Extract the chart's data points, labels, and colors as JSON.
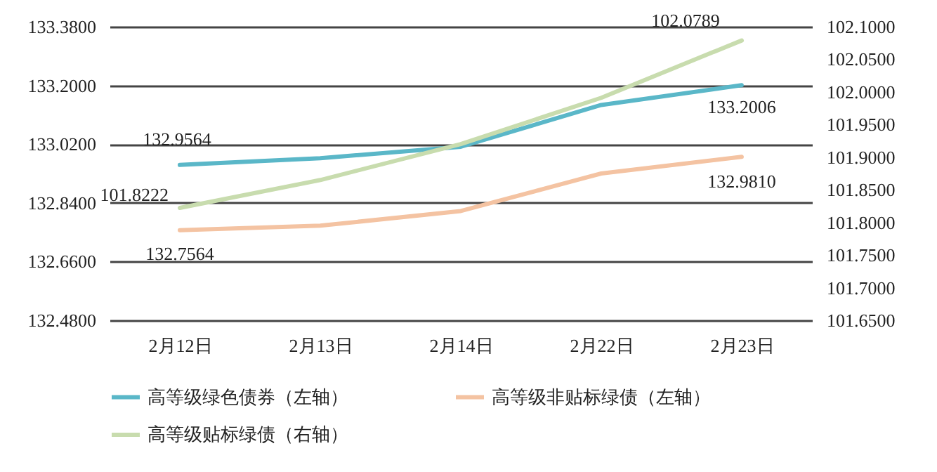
{
  "chart_data": {
    "type": "line",
    "categories": [
      "2月12日",
      "2月13日",
      "2月14日",
      "2月22日",
      "2月23日"
    ],
    "series": [
      {
        "name": "高等级绿色债券（左轴）",
        "color": "#5ab7c8",
        "axis": "y",
        "values": [
          132.9564,
          132.977,
          133.012,
          133.14,
          133.2006
        ],
        "value_labels": [
          "132.9564",
          null,
          null,
          null,
          "133.2006"
        ]
      },
      {
        "name": "高等级非贴标绿债（左轴）",
        "color": "#f4c3a2",
        "axis": "y",
        "values": [
          132.7564,
          132.77,
          132.815,
          132.93,
          132.981
        ],
        "value_labels": [
          "132.7564",
          null,
          null,
          null,
          "132.9810"
        ]
      },
      {
        "name": "高等级贴标绿债（右轴）",
        "color": "#c8dcae",
        "axis": "y2",
        "values": [
          101.8222,
          101.865,
          101.92,
          101.991,
          102.0789
        ],
        "value_labels": [
          "101.8222",
          null,
          null,
          null,
          "102.0789"
        ]
      }
    ],
    "ylim": [
      132.48,
      133.38
    ],
    "yticks": [
      {
        "value": 132.48,
        "label": "132.4800"
      },
      {
        "value": 132.66,
        "label": "132.6600"
      },
      {
        "value": 132.84,
        "label": "132.8400"
      },
      {
        "value": 133.02,
        "label": "133.0200"
      },
      {
        "value": 133.2,
        "label": "133.2000"
      },
      {
        "value": 133.38,
        "label": "133.3800"
      }
    ],
    "y2lim": [
      101.65,
      102.1
    ],
    "y2ticks": [
      {
        "value": 101.65,
        "label": "101.6500"
      },
      {
        "value": 101.7,
        "label": "101.7000"
      },
      {
        "value": 101.75,
        "label": "101.7500"
      },
      {
        "value": 101.8,
        "label": "101.8000"
      },
      {
        "value": 101.85,
        "label": "101.8500"
      },
      {
        "value": 101.9,
        "label": "101.9000"
      },
      {
        "value": 101.95,
        "label": "101.9500"
      },
      {
        "value": 102,
        "label": "102.0000"
      },
      {
        "value": 102.05,
        "label": "102.0500"
      },
      {
        "value": 102.1,
        "label": "102.1000"
      }
    ],
    "grid": "y",
    "legend": "bottom"
  }
}
